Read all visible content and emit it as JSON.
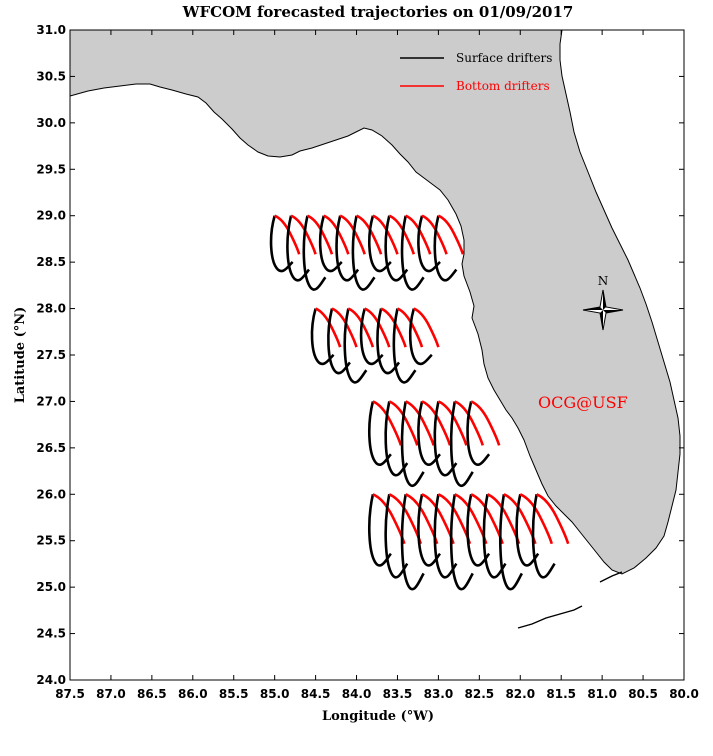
{
  "title": "WFCOM forecasted trajectories on 01/09/2017",
  "xlabel": "Longitude (°W)",
  "ylabel": "Latitude (°N)",
  "legend": {
    "surface_label": "Surface drifters",
    "bottom_label": "Bottom drifters"
  },
  "watermark": "OCG@USF",
  "compass_label": "N",
  "colors": {
    "land": "#cccccc",
    "surface": "#000000",
    "bottom": "#ff0000",
    "watermark": "#ff0000"
  },
  "x_ticks": [
    "87.5",
    "87.0",
    "86.5",
    "86.0",
    "85.5",
    "85.0",
    "84.5",
    "84.0",
    "83.5",
    "83.0",
    "82.5",
    "82.0",
    "81.5",
    "81.0",
    "80.5",
    "80.0"
  ],
  "y_ticks": [
    "31.0",
    "30.5",
    "30.0",
    "29.5",
    "29.0",
    "28.5",
    "28.0",
    "27.5",
    "27.0",
    "26.5",
    "26.0",
    "25.5",
    "25.0",
    "24.5",
    "24.0"
  ],
  "chart_data": {
    "type": "map",
    "xlim": [
      87.5,
      80.0
    ],
    "ylim": [
      24.0,
      31.0
    ],
    "release_rows": [
      {
        "lat": 29.0,
        "lons": [
          85.0,
          84.8,
          84.6,
          84.4,
          84.2,
          84.0,
          83.8,
          83.6,
          83.4,
          83.2,
          83.0
        ]
      },
      {
        "lat": 28.0,
        "lons": [
          84.5,
          84.3,
          84.1,
          83.9,
          83.7,
          83.5,
          83.3
        ]
      },
      {
        "lat": 27.0,
        "lons": [
          83.8,
          83.6,
          83.4,
          83.2,
          83.0,
          82.8,
          82.6
        ]
      },
      {
        "lat": 26.0,
        "lons": [
          83.8,
          83.6,
          83.4,
          83.2,
          83.0,
          82.8,
          82.6,
          82.4,
          82.2,
          82.0,
          81.8
        ]
      }
    ]
  }
}
